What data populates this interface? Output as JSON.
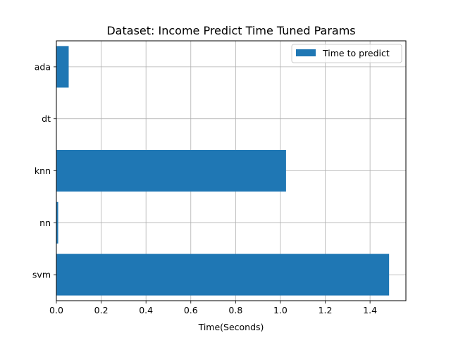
{
  "chart_data": {
    "type": "bar",
    "orientation": "horizontal",
    "title": "Dataset: Income Predict Time Tuned Params",
    "xlabel": "Time(Seconds)",
    "ylabel": "",
    "categories": [
      "ada",
      "dt",
      "knn",
      "nn",
      "svm"
    ],
    "series": [
      {
        "name": "Time to predict",
        "values": [
          0.055,
          0.0,
          1.025,
          0.008,
          1.485
        ],
        "color": "#1f77b4"
      }
    ],
    "xlim": [
      0,
      1.56
    ],
    "xticks": [
      "0.0",
      "0.2",
      "0.4",
      "0.6",
      "0.8",
      "1.0",
      "1.2",
      "1.4"
    ],
    "xtick_values": [
      0,
      0.2,
      0.4,
      0.6,
      0.8,
      1.0,
      1.2,
      1.4
    ],
    "grid": true,
    "legend_position": "top-right"
  }
}
